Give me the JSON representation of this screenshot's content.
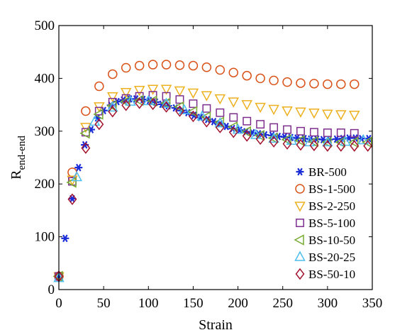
{
  "chart_data": {
    "type": "scatter",
    "xlabel": "Strain",
    "ylabel": "R",
    "ylabel_sub": "end-end",
    "xlim": [
      0,
      350
    ],
    "ylim": [
      0,
      500
    ],
    "xticks": [
      0,
      50,
      100,
      150,
      200,
      250,
      300,
      350
    ],
    "yticks": [
      0,
      100,
      200,
      300,
      400,
      500
    ],
    "grid": false,
    "legend_position": "right",
    "series": [
      {
        "name": "BR-500",
        "marker": "asterisk",
        "color": "#1a2bd8",
        "x": [
          0,
          7,
          15,
          22,
          29,
          36,
          43,
          50,
          58,
          65,
          72,
          79,
          86,
          94,
          101,
          108,
          115,
          122,
          130,
          137,
          144,
          151,
          158,
          166,
          173,
          180,
          187,
          194,
          202,
          209,
          216,
          223,
          230,
          238,
          245,
          252,
          259,
          266,
          274,
          281,
          288,
          295,
          302,
          310,
          317,
          324,
          331,
          338,
          346
        ],
        "y": [
          25,
          97,
          172,
          231,
          274,
          303,
          325,
          339,
          349,
          356,
          359,
          361,
          361,
          360,
          358,
          355,
          351,
          348,
          344,
          339,
          335,
          330,
          326,
          322,
          318,
          314,
          309,
          305,
          302,
          299,
          297,
          295,
          293,
          292,
          290,
          289,
          288,
          287,
          286,
          285,
          285,
          284,
          284,
          285,
          286,
          287,
          287,
          286,
          286
        ]
      },
      {
        "name": "BS-1-500",
        "marker": "circle",
        "color": "#d95319",
        "x": [
          0,
          15,
          30,
          45,
          60,
          75,
          90,
          105,
          120,
          135,
          150,
          165,
          180,
          195,
          210,
          225,
          240,
          255,
          270,
          285,
          300,
          315,
          330
        ],
        "y": [
          25,
          222,
          338,
          385,
          408,
          420,
          424,
          426,
          426,
          425,
          424,
          421,
          416,
          411,
          405,
          400,
          396,
          393,
          391,
          390,
          389,
          389,
          389
        ]
      },
      {
        "name": "BS-2-250",
        "marker": "triangle-down",
        "color": "#edb120",
        "x": [
          0,
          15,
          30,
          45,
          60,
          75,
          90,
          105,
          120,
          135,
          150,
          165,
          180,
          195,
          210,
          225,
          240,
          255,
          270,
          285,
          300,
          315,
          330
        ],
        "y": [
          25,
          208,
          308,
          347,
          366,
          374,
          378,
          380,
          380,
          377,
          373,
          368,
          362,
          356,
          351,
          346,
          342,
          339,
          337,
          335,
          333,
          332,
          331
        ]
      },
      {
        "name": "BS-5-100",
        "marker": "square",
        "color": "#7e2f8e",
        "x": [
          0,
          15,
          30,
          45,
          60,
          75,
          90,
          105,
          120,
          135,
          150,
          165,
          180,
          195,
          210,
          225,
          240,
          255,
          270,
          285,
          300,
          315,
          330
        ],
        "y": [
          25,
          205,
          298,
          338,
          355,
          362,
          366,
          368,
          366,
          360,
          352,
          343,
          335,
          326,
          319,
          313,
          307,
          303,
          300,
          298,
          297,
          297,
          296
        ]
      },
      {
        "name": "BS-10-50",
        "marker": "triangle-left",
        "color": "#77ac30",
        "x": [
          0,
          15,
          30,
          45,
          60,
          75,
          90,
          105,
          120,
          135,
          150,
          165,
          180,
          195,
          210,
          225,
          240,
          255,
          270,
          285,
          300,
          315,
          330,
          345
        ],
        "y": [
          25,
          203,
          296,
          332,
          348,
          356,
          358,
          357,
          353,
          346,
          337,
          327,
          317,
          308,
          299,
          292,
          287,
          284,
          282,
          280,
          279,
          279,
          279,
          279
        ]
      },
      {
        "name": "BS-20-25",
        "marker": "triangle-up",
        "color": "#4dbeee",
        "x": [
          0,
          20,
          40,
          60,
          80,
          100,
          120,
          140,
          160,
          180,
          200,
          220,
          240,
          260,
          280,
          300,
          320,
          340
        ],
        "y": [
          22,
          213,
          318,
          345,
          356,
          357,
          352,
          340,
          328,
          315,
          303,
          293,
          286,
          282,
          279,
          279,
          280,
          283
        ]
      },
      {
        "name": "BS-50-10",
        "marker": "diamond",
        "color": "#a2142f",
        "x": [
          0,
          15,
          30,
          45,
          60,
          75,
          90,
          105,
          120,
          135,
          150,
          165,
          180,
          195,
          210,
          225,
          240,
          255,
          270,
          285,
          300,
          315,
          330,
          345
        ],
        "y": [
          25,
          171,
          268,
          313,
          337,
          349,
          353,
          351,
          346,
          338,
          328,
          318,
          307,
          298,
          291,
          285,
          280,
          276,
          274,
          273,
          272,
          272,
          272,
          272
        ]
      }
    ]
  }
}
